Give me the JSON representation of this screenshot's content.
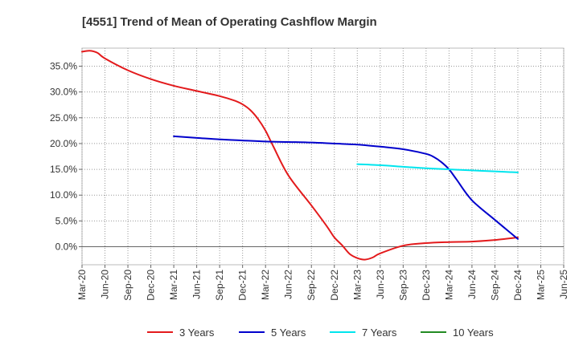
{
  "chart_data": {
    "type": "line",
    "title": "[4551]  Trend of Mean of Operating Cashflow Margin",
    "xlabel": "",
    "ylabel": "",
    "x": [
      "Mar-20",
      "Jun-20",
      "Sep-20",
      "Dec-20",
      "Mar-21",
      "Jun-21",
      "Sep-21",
      "Dec-21",
      "Mar-22",
      "Jun-22",
      "Sep-22",
      "Dec-22",
      "Mar-23",
      "Jun-23",
      "Sep-23",
      "Dec-23",
      "Mar-24",
      "Jun-24",
      "Sep-24",
      "Dec-24",
      "Mar-25",
      "Jun-25"
    ],
    "ylim": [
      -3.5,
      38.5
    ],
    "yticks": [
      0,
      5,
      10,
      15,
      20,
      25,
      30,
      35
    ],
    "ytick_labels": [
      "0.0%",
      "5.0%",
      "10.0%",
      "15.0%",
      "20.0%",
      "25.0%",
      "30.0%",
      "35.0%"
    ],
    "grid": true,
    "legend_position": "bottom",
    "series": [
      {
        "name": "3 Years",
        "color": "#e31a1c",
        "points": [
          [
            "Mar-20",
            37.8
          ],
          [
            "Apr-20",
            38.0
          ],
          [
            "May-20",
            37.6
          ],
          [
            "Jun-20",
            36.5
          ],
          [
            "Sep-20",
            34.2
          ],
          [
            "Dec-20",
            32.5
          ],
          [
            "Mar-21",
            31.2
          ],
          [
            "Jun-21",
            30.2
          ],
          [
            "Sep-21",
            29.2
          ],
          [
            "Nov-21",
            28.3
          ],
          [
            "Dec-21",
            27.6
          ],
          [
            "Jan-22",
            26.5
          ],
          [
            "Feb-22",
            24.8
          ],
          [
            "Mar-22",
            22.5
          ],
          [
            "Apr-22",
            19.5
          ],
          [
            "Jun-22",
            13.8
          ],
          [
            "Sep-22",
            8.0
          ],
          [
            "Nov-22",
            4.0
          ],
          [
            "Dec-22",
            1.8
          ],
          [
            "Jan-23",
            0.3
          ],
          [
            "Feb-23",
            -1.4
          ],
          [
            "Mar-23",
            -2.2
          ],
          [
            "Apr-23",
            -2.5
          ],
          [
            "May-23",
            -2.1
          ],
          [
            "Jun-23",
            -1.3
          ],
          [
            "Sep-23",
            0.2
          ],
          [
            "Dec-23",
            0.7
          ],
          [
            "Mar-24",
            0.9
          ],
          [
            "Jun-24",
            1.0
          ],
          [
            "Sep-24",
            1.3
          ],
          [
            "Dec-24",
            1.8
          ]
        ]
      },
      {
        "name": "5 Years",
        "color": "#0000cc",
        "points": [
          [
            "Mar-21",
            21.4
          ],
          [
            "Jun-21",
            21.1
          ],
          [
            "Sep-21",
            20.8
          ],
          [
            "Dec-21",
            20.6
          ],
          [
            "Mar-22",
            20.4
          ],
          [
            "Jun-22",
            20.3
          ],
          [
            "Sep-22",
            20.2
          ],
          [
            "Dec-22",
            20.0
          ],
          [
            "Mar-23",
            19.8
          ],
          [
            "Jun-23",
            19.4
          ],
          [
            "Sep-23",
            18.9
          ],
          [
            "Dec-23",
            18.0
          ],
          [
            "Jan-24",
            17.4
          ],
          [
            "Feb-24",
            16.4
          ],
          [
            "Mar-24",
            15.0
          ],
          [
            "Apr-24",
            13.0
          ],
          [
            "Jun-24",
            9.0
          ],
          [
            "Sep-24",
            5.2
          ],
          [
            "Dec-24",
            1.5
          ]
        ]
      },
      {
        "name": "7 Years",
        "color": "#00e5ee",
        "points": [
          [
            "Mar-23",
            16.0
          ],
          [
            "Jun-23",
            15.8
          ],
          [
            "Sep-23",
            15.5
          ],
          [
            "Dec-23",
            15.2
          ],
          [
            "Mar-24",
            15.0
          ],
          [
            "Jun-24",
            14.8
          ],
          [
            "Sep-24",
            14.6
          ],
          [
            "Dec-24",
            14.4
          ]
        ]
      },
      {
        "name": "10 Years",
        "color": "#228b22",
        "points": []
      }
    ]
  }
}
